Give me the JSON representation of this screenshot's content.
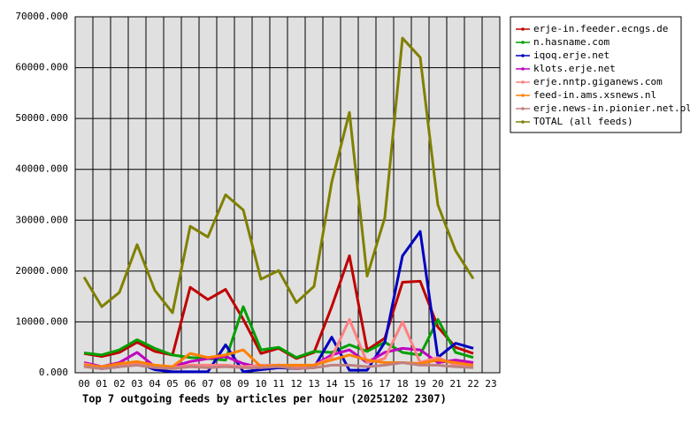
{
  "chart_data": {
    "type": "line",
    "title": "Top 7 outgoing feeds by articles per hour (20251202 2307)",
    "categories": [
      "00",
      "01",
      "02",
      "03",
      "04",
      "05",
      "06",
      "07",
      "08",
      "09",
      "10",
      "11",
      "12",
      "13",
      "14",
      "15",
      "16",
      "17",
      "18",
      "19",
      "20",
      "21",
      "22",
      "23"
    ],
    "ylim": [
      0,
      70000
    ],
    "yticks": [
      {
        "value": 0,
        "label": "0.000"
      },
      {
        "value": 10000,
        "label": "10000.000"
      },
      {
        "value": 20000,
        "label": "20000.000"
      },
      {
        "value": 30000,
        "label": "30000.000"
      },
      {
        "value": 40000,
        "label": "40000.000"
      },
      {
        "value": 50000,
        "label": "50000.000"
      },
      {
        "value": 60000,
        "label": "60000.000"
      },
      {
        "value": 70000,
        "label": "70000.000"
      }
    ],
    "grid": true,
    "legend": "right",
    "series": [
      {
        "name": "erje-in.feeder.ecngs.de",
        "color": "#c00000",
        "values": [
          3800,
          3200,
          4000,
          6000,
          4200,
          3500,
          16800,
          14400,
          16400,
          10500,
          3800,
          4800,
          2800,
          4000,
          13000,
          23000,
          4500,
          6800,
          17800,
          18000,
          9000,
          5000,
          3800,
          null
        ]
      },
      {
        "name": "n.hasname.com",
        "color": "#00a000",
        "values": [
          3900,
          3500,
          4500,
          6500,
          4800,
          3500,
          3000,
          2800,
          2500,
          13000,
          4500,
          5000,
          3000,
          4200,
          4000,
          5500,
          4200,
          6000,
          4000,
          3500,
          10500,
          4000,
          3000,
          null
        ]
      },
      {
        "name": "iqoq.erje.net",
        "color": "#0000c0",
        "values": [
          1500,
          800,
          1200,
          2000,
          600,
          200,
          200,
          200,
          5500,
          200,
          600,
          1000,
          800,
          1000,
          7000,
          500,
          500,
          6000,
          23000,
          27800,
          3000,
          5800,
          4800,
          null
        ]
      },
      {
        "name": "klots.erje.net",
        "color": "#c000c0",
        "values": [
          2000,
          1200,
          2000,
          4000,
          1200,
          1200,
          2200,
          2800,
          3200,
          1800,
          1000,
          1500,
          1200,
          1500,
          3500,
          4500,
          2000,
          4000,
          4800,
          4500,
          2000,
          2500,
          2000,
          null
        ]
      },
      {
        "name": "erje.nntp.giganews.com",
        "color": "#ff8080",
        "values": [
          1800,
          1000,
          1500,
          1800,
          1500,
          1000,
          1500,
          1500,
          1500,
          1200,
          1500,
          1500,
          1200,
          1500,
          3000,
          10500,
          2000,
          2800,
          10000,
          2000,
          3000,
          1500,
          1200,
          null
        ]
      },
      {
        "name": "feed-in.ams.xsnews.nl",
        "color": "#ff8000",
        "values": [
          1500,
          1200,
          1800,
          2200,
          1500,
          1200,
          3800,
          3000,
          3500,
          4500,
          1200,
          1500,
          1500,
          1500,
          2500,
          3500,
          2500,
          2000,
          2000,
          1800,
          2500,
          2000,
          1500,
          null
        ]
      },
      {
        "name": "erje.news-in.pionier.net.pl",
        "color": "#c08080",
        "values": [
          1200,
          800,
          1200,
          1500,
          1000,
          800,
          1200,
          1000,
          1200,
          1000,
          1000,
          1200,
          800,
          1000,
          1500,
          1500,
          1200,
          1500,
          2000,
          1500,
          1500,
          1200,
          1000,
          null
        ]
      },
      {
        "name": "TOTAL (all feeds)",
        "color": "#808000",
        "values": [
          18800,
          13000,
          15800,
          25200,
          16200,
          11800,
          28800,
          26700,
          35000,
          32000,
          18400,
          20100,
          13800,
          17000,
          37500,
          51200,
          19000,
          30500,
          65800,
          62000,
          33000,
          24000,
          18500,
          null
        ]
      }
    ]
  }
}
